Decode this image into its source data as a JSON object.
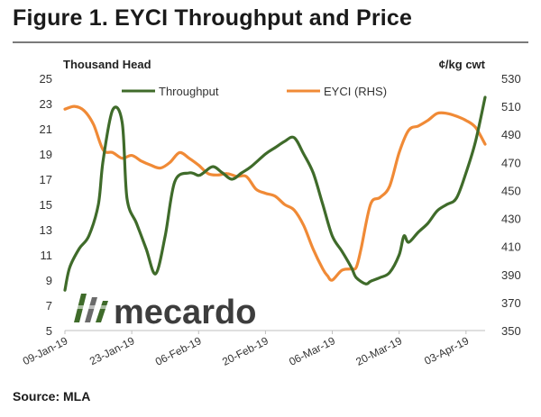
{
  "title": "Figure 1. EYCI Throughput and Price",
  "source": "Source: MLA",
  "logo_text": "mecardo",
  "chart_data": {
    "type": "line",
    "y_left_label": "Thousand Head",
    "y_right_label": "¢/kg cwt",
    "y_left_ticks": [
      "25",
      "23",
      "21",
      "19",
      "17",
      "15",
      "13",
      "11",
      "9",
      "7",
      "5"
    ],
    "y_right_ticks": [
      "530",
      "510",
      "490",
      "470",
      "450",
      "430",
      "410",
      "390",
      "370",
      "350"
    ],
    "y_left_range": [
      5,
      25
    ],
    "y_right_range": [
      350,
      530
    ],
    "x_ticks": [
      "09-Jan-19",
      "23-Jan-19",
      "06-Feb-19",
      "20-Feb-19",
      "06-Mar-19",
      "20-Mar-19",
      "03-Apr-19"
    ],
    "x_range_days": [
      0,
      88
    ],
    "legend_position": "top",
    "grid": false,
    "colors": {
      "throughput": "#3f6b2a",
      "eyci": "#f08a36"
    },
    "series": [
      {
        "name": "Throughput",
        "axis": "left",
        "x": [
          0,
          1,
          3,
          5,
          7,
          8,
          10,
          12,
          13,
          15,
          17,
          19,
          21,
          23,
          26,
          28,
          29,
          31,
          33,
          35,
          37,
          39,
          42,
          44,
          46,
          48,
          50,
          52,
          54,
          56,
          58,
          60,
          61,
          63,
          64,
          66,
          68,
          70,
          71,
          72,
          74,
          76,
          78,
          80,
          82,
          84,
          86,
          88
        ],
        "y": [
          8.2,
          10.0,
          11.5,
          12.5,
          15.0,
          18.5,
          22.5,
          21.5,
          15.5,
          13.5,
          11.5,
          9.5,
          12.5,
          16.8,
          17.5,
          17.3,
          17.5,
          18.0,
          17.5,
          17.0,
          17.5,
          18.0,
          19.0,
          19.5,
          20.0,
          20.3,
          19.0,
          17.5,
          15.0,
          12.5,
          11.3,
          10.0,
          9.2,
          8.7,
          8.9,
          9.2,
          9.6,
          11.0,
          12.5,
          12.0,
          12.8,
          13.5,
          14.5,
          15.0,
          15.5,
          17.5,
          20.0,
          23.5
        ]
      },
      {
        "name": "EYCI (RHS)",
        "axis": "right",
        "x": [
          0,
          2,
          4,
          6,
          8,
          10,
          12,
          14,
          16,
          18,
          20,
          22,
          24,
          26,
          28,
          30,
          32,
          34,
          36,
          38,
          40,
          42,
          44,
          46,
          48,
          50,
          52,
          54,
          55,
          56,
          58,
          60,
          61,
          62,
          64,
          66,
          68,
          70,
          72,
          74,
          76,
          78,
          80,
          82,
          84,
          86,
          88
        ],
        "y": [
          508,
          510,
          507,
          497,
          479,
          477,
          473,
          475,
          471,
          468,
          466,
          470,
          477,
          473,
          468,
          462,
          461,
          462,
          460,
          460,
          451,
          448,
          446,
          440,
          436,
          425,
          408,
          394,
          389,
          386,
          393,
          394,
          395,
          408,
          440,
          445,
          453,
          477,
          493,
          496,
          500,
          505,
          505,
          503,
          500,
          495,
          483
        ]
      }
    ]
  }
}
